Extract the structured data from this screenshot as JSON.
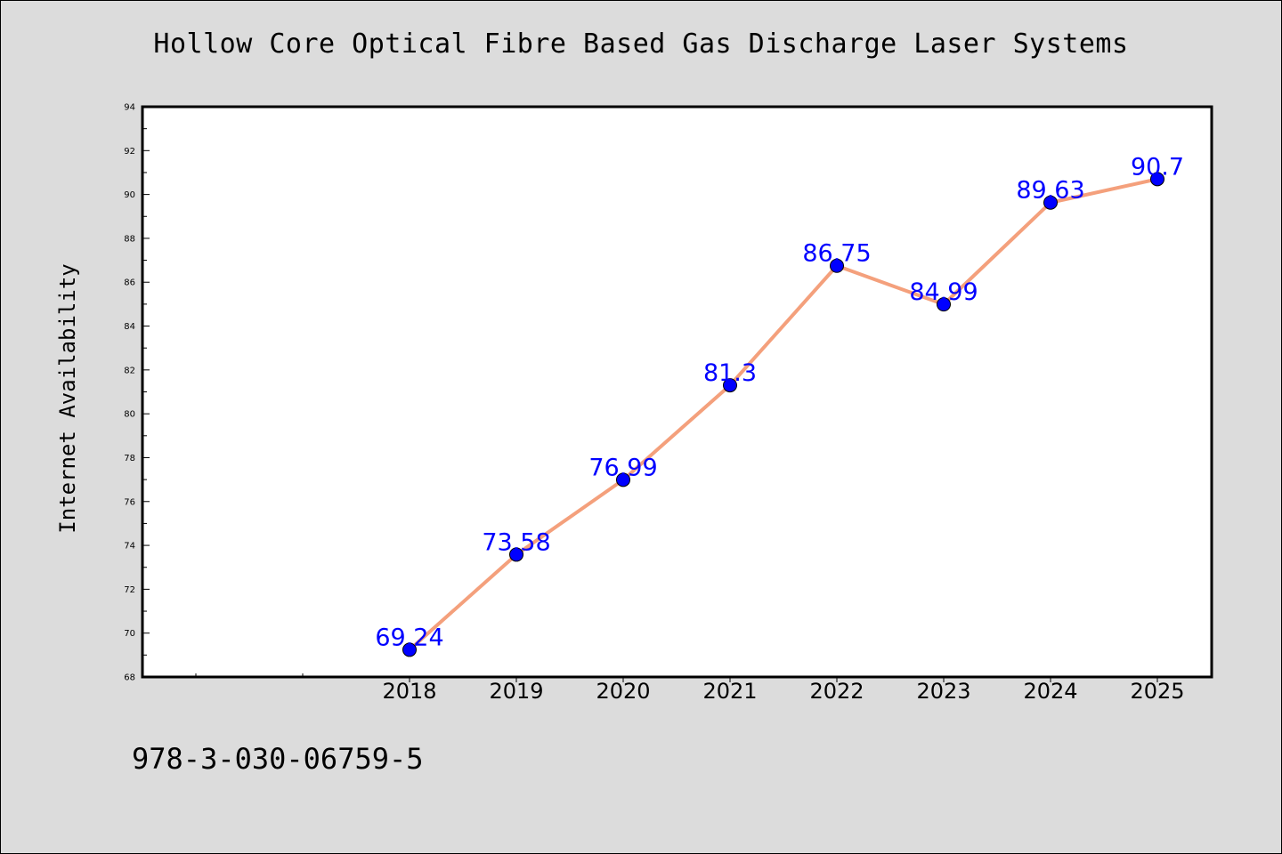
{
  "page": {
    "footer_text": "978-3-030-06759-5"
  },
  "colors": {
    "background": "#dcdcdc",
    "plot_background": "#ffffff",
    "line": "#f4a07c",
    "marker": "#0000ff",
    "data_label": "#0000ff"
  },
  "chart_data": {
    "type": "line",
    "title": "Hollow Core Optical Fibre Based Gas Discharge Laser Systems",
    "xlabel": "",
    "ylabel": "Internet Availability",
    "x": [
      "2018",
      "2019",
      "2020",
      "2021",
      "2022",
      "2023",
      "2024",
      "2025"
    ],
    "series": [
      {
        "values": [
          69.24,
          73.58,
          76.99,
          81.3,
          86.75,
          84.99,
          89.63,
          90.7
        ]
      }
    ],
    "data_labels": [
      "69.24",
      "73.58",
      "76.99",
      "81.3",
      "86.75",
      "84.99",
      "89.63",
      "90.7"
    ],
    "ylim": [
      68,
      94
    ],
    "yticks": [
      "68",
      "70",
      "72",
      "74",
      "76",
      "78",
      "80",
      "82",
      "84",
      "86",
      "88",
      "90",
      "92",
      "94"
    ],
    "grid": false,
    "legend": "none"
  }
}
